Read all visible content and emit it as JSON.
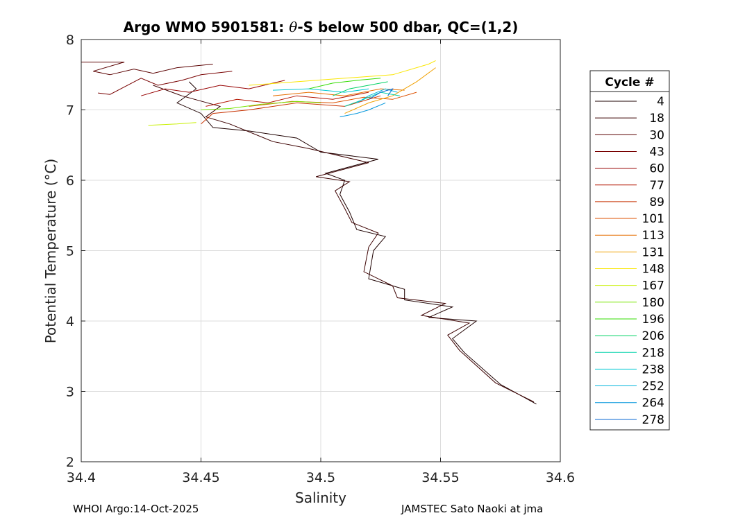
{
  "chart_data": {
    "type": "line",
    "title_prefix": "Argo WMO 5901581: ",
    "title_theta": "θ",
    "title_suffix": "-S below 500 dbar,  QC=(1,2)",
    "xlabel": "Salinity",
    "ylabel": "Potential Temperature (°C)",
    "xlim": [
      34.4,
      34.6
    ],
    "ylim": [
      2,
      8
    ],
    "xticks": [
      "34.4",
      "34.45",
      "34.5",
      "34.55",
      "34.6"
    ],
    "xtick_values": [
      34.4,
      34.45,
      34.5,
      34.55,
      34.6
    ],
    "yticks": [
      "2",
      "3",
      "4",
      "5",
      "6",
      "7",
      "8"
    ],
    "ytick_values": [
      2,
      3,
      4,
      5,
      6,
      7,
      8
    ],
    "grid": true,
    "legend_title": "Cycle #",
    "legend_position": "outside-right",
    "series": [
      {
        "name": "4",
        "color": "#1e0000",
        "points": [
          [
            34.59,
            2.82
          ],
          [
            34.575,
            3.1
          ],
          [
            34.56,
            3.55
          ],
          [
            34.555,
            3.75
          ],
          [
            34.565,
            4.0
          ],
          [
            34.545,
            4.05
          ],
          [
            34.555,
            4.2
          ],
          [
            34.535,
            4.3
          ],
          [
            34.535,
            4.45
          ],
          [
            34.52,
            4.6
          ],
          [
            34.522,
            5.0
          ],
          [
            34.527,
            5.2
          ],
          [
            34.515,
            5.3
          ],
          [
            34.512,
            5.55
          ],
          [
            34.508,
            5.8
          ],
          [
            34.51,
            6.0
          ],
          [
            34.502,
            6.1
          ],
          [
            34.524,
            6.3
          ],
          [
            34.5,
            6.4
          ],
          [
            34.49,
            6.6
          ],
          [
            34.47,
            6.7
          ],
          [
            34.455,
            6.75
          ],
          [
            34.45,
            6.95
          ],
          [
            34.44,
            7.1
          ],
          [
            34.448,
            7.3
          ],
          [
            34.445,
            7.4
          ]
        ]
      },
      {
        "name": "18",
        "color": "#3c0000",
        "points": [
          [
            34.589,
            2.85
          ],
          [
            34.573,
            3.12
          ],
          [
            34.558,
            3.58
          ],
          [
            34.553,
            3.8
          ],
          [
            34.562,
            3.97
          ],
          [
            34.542,
            4.08
          ],
          [
            34.552,
            4.25
          ],
          [
            34.532,
            4.33
          ],
          [
            34.53,
            4.5
          ],
          [
            34.518,
            4.7
          ],
          [
            34.52,
            5.05
          ],
          [
            34.524,
            5.25
          ],
          [
            34.513,
            5.4
          ],
          [
            34.51,
            5.6
          ],
          [
            34.506,
            5.85
          ],
          [
            34.512,
            5.98
          ],
          [
            34.498,
            6.05
          ],
          [
            34.52,
            6.25
          ],
          [
            34.495,
            6.45
          ],
          [
            34.48,
            6.55
          ],
          [
            34.462,
            6.8
          ],
          [
            34.452,
            6.9
          ],
          [
            34.458,
            7.05
          ],
          [
            34.442,
            7.2
          ],
          [
            34.43,
            7.35
          ]
        ]
      },
      {
        "name": "30",
        "color": "#5a0000",
        "points": [
          [
            34.4,
            7.68
          ],
          [
            34.418,
            7.68
          ],
          [
            34.405,
            7.55
          ],
          [
            34.412,
            7.5
          ],
          [
            34.422,
            7.58
          ],
          [
            34.43,
            7.52
          ],
          [
            34.44,
            7.6
          ],
          [
            34.455,
            7.65
          ]
        ]
      },
      {
        "name": "43",
        "color": "#780000",
        "points": [
          [
            34.407,
            7.24
          ],
          [
            34.412,
            7.22
          ],
          [
            34.425,
            7.45
          ],
          [
            34.432,
            7.35
          ],
          [
            34.442,
            7.42
          ],
          [
            34.45,
            7.5
          ],
          [
            34.463,
            7.55
          ]
        ]
      },
      {
        "name": "60",
        "color": "#960000",
        "points": [
          [
            34.425,
            7.2
          ],
          [
            34.435,
            7.3
          ],
          [
            34.445,
            7.25
          ],
          [
            34.458,
            7.35
          ],
          [
            34.47,
            7.3
          ],
          [
            34.485,
            7.42
          ]
        ]
      },
      {
        "name": "77",
        "color": "#b41400",
        "points": [
          [
            34.452,
            7.05
          ],
          [
            34.465,
            7.15
          ],
          [
            34.478,
            7.1
          ],
          [
            34.49,
            7.2
          ],
          [
            34.505,
            7.15
          ],
          [
            34.52,
            7.25
          ]
        ]
      },
      {
        "name": "89",
        "color": "#c83200",
        "points": [
          [
            34.45,
            6.8
          ],
          [
            34.455,
            6.95
          ],
          [
            34.47,
            7.0
          ],
          [
            34.49,
            7.1
          ],
          [
            34.51,
            7.05
          ],
          [
            34.525,
            7.2
          ]
        ]
      },
      {
        "name": "101",
        "color": "#dc5000",
        "points": [
          [
            34.47,
            7.05
          ],
          [
            34.488,
            7.12
          ],
          [
            34.505,
            7.1
          ],
          [
            34.518,
            7.18
          ],
          [
            34.53,
            7.15
          ],
          [
            34.54,
            7.25
          ]
        ]
      },
      {
        "name": "113",
        "color": "#e66e00",
        "points": [
          [
            34.48,
            7.2
          ],
          [
            34.495,
            7.25
          ],
          [
            34.51,
            7.2
          ],
          [
            34.525,
            7.3
          ],
          [
            34.535,
            7.28
          ]
        ]
      },
      {
        "name": "131",
        "color": "#f0a000",
        "points": [
          [
            34.51,
            6.95
          ],
          [
            34.52,
            7.1
          ],
          [
            34.53,
            7.2
          ],
          [
            34.54,
            7.4
          ],
          [
            34.548,
            7.6
          ]
        ]
      },
      {
        "name": "148",
        "color": "#fae600",
        "points": [
          [
            34.47,
            7.35
          ],
          [
            34.49,
            7.4
          ],
          [
            34.51,
            7.45
          ],
          [
            34.53,
            7.5
          ],
          [
            34.545,
            7.65
          ],
          [
            34.548,
            7.7
          ]
        ]
      },
      {
        "name": "167",
        "color": "#c8f000",
        "points": [
          [
            34.428,
            6.78
          ],
          [
            34.44,
            6.8
          ],
          [
            34.448,
            6.82
          ]
        ]
      },
      {
        "name": "180",
        "color": "#78e600",
        "points": [
          [
            34.45,
            7.0
          ],
          [
            34.462,
            7.02
          ],
          [
            34.475,
            7.08
          ],
          [
            34.49,
            7.12
          ],
          [
            34.5,
            7.1
          ]
        ]
      },
      {
        "name": "196",
        "color": "#32dc00",
        "points": [
          [
            34.495,
            7.3
          ],
          [
            34.505,
            7.38
          ],
          [
            34.515,
            7.42
          ],
          [
            34.525,
            7.45
          ]
        ]
      },
      {
        "name": "206",
        "color": "#00d264",
        "points": [
          [
            34.505,
            7.2
          ],
          [
            34.512,
            7.3
          ],
          [
            34.52,
            7.35
          ],
          [
            34.528,
            7.4
          ]
        ]
      },
      {
        "name": "218",
        "color": "#00d2aa",
        "points": [
          [
            34.51,
            7.05
          ],
          [
            34.518,
            7.15
          ],
          [
            34.525,
            7.25
          ],
          [
            34.533,
            7.2
          ]
        ]
      },
      {
        "name": "238",
        "color": "#00c8d2",
        "points": [
          [
            34.48,
            7.28
          ],
          [
            34.495,
            7.3
          ],
          [
            34.51,
            7.25
          ],
          [
            34.52,
            7.3
          ]
        ]
      },
      {
        "name": "252",
        "color": "#00b4dc",
        "points": [
          [
            34.515,
            7.1
          ],
          [
            34.52,
            7.2
          ],
          [
            34.527,
            7.3
          ],
          [
            34.532,
            7.25
          ]
        ]
      },
      {
        "name": "264",
        "color": "#0096dc",
        "points": [
          [
            34.508,
            6.9
          ],
          [
            34.515,
            6.95
          ],
          [
            34.52,
            7.0
          ],
          [
            34.527,
            7.1
          ]
        ]
      },
      {
        "name": "278",
        "color": "#0064d2",
        "points": [
          [
            34.52,
            7.15
          ],
          [
            34.525,
            7.25
          ],
          [
            34.53,
            7.3
          ],
          [
            34.528,
            7.2
          ]
        ]
      }
    ]
  },
  "credits": {
    "left": "WHOI Argo:14-Oct-2025",
    "right": "JAMSTEC Sato Naoki at jma"
  }
}
